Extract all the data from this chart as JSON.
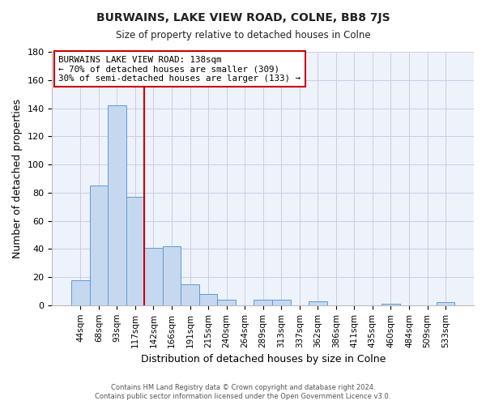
{
  "title": "BURWAINS, LAKE VIEW ROAD, COLNE, BB8 7JS",
  "subtitle": "Size of property relative to detached houses in Colne",
  "xlabel": "Distribution of detached houses by size in Colne",
  "ylabel": "Number of detached properties",
  "bar_labels": [
    "44sqm",
    "68sqm",
    "93sqm",
    "117sqm",
    "142sqm",
    "166sqm",
    "191sqm",
    "215sqm",
    "240sqm",
    "264sqm",
    "289sqm",
    "313sqm",
    "337sqm",
    "362sqm",
    "386sqm",
    "411sqm",
    "435sqm",
    "460sqm",
    "484sqm",
    "509sqm",
    "533sqm"
  ],
  "bar_values": [
    18,
    85,
    142,
    77,
    41,
    42,
    15,
    8,
    4,
    0,
    4,
    4,
    0,
    3,
    0,
    0,
    0,
    1,
    0,
    0,
    2
  ],
  "bar_color": "#c6d8f0",
  "bar_edge_color": "#5b9bd5",
  "vline_x_index": 4,
  "vline_color": "#cc0000",
  "annotation_text": "BURWAINS LAKE VIEW ROAD: 138sqm\n← 70% of detached houses are smaller (309)\n30% of semi-detached houses are larger (133) →",
  "annotation_box_color": "#ffffff",
  "annotation_box_edge": "#cc0000",
  "ylim": [
    0,
    180
  ],
  "yticks": [
    0,
    20,
    40,
    60,
    80,
    100,
    120,
    140,
    160,
    180
  ],
  "footer": "Contains HM Land Registry data © Crown copyright and database right 2024.\nContains public sector information licensed under the Open Government Licence v3.0.",
  "bg_color": "#ffffff",
  "plot_bg_color": "#eef2fb",
  "grid_color": "#c8cfe0"
}
